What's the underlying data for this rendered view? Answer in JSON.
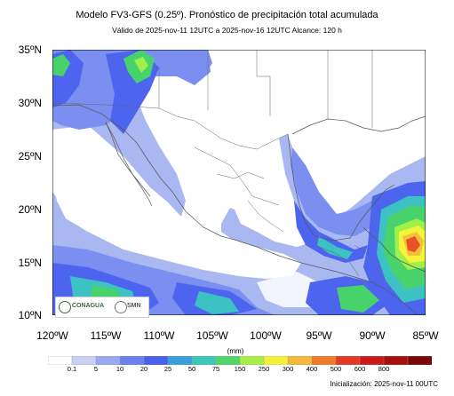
{
  "header": {
    "title": "Modelo FV3-GFS (0.25º). Pronóstico de precipitación total acumulada",
    "subtitle": "Válido de 2025-nov-11 12UTC a 2025-nov-16 12UTC    Alcance: 120 h"
  },
  "map": {
    "lon_range": [
      -120,
      -85
    ],
    "lat_range": [
      10,
      35
    ],
    "y_ticks": [
      "35ºN",
      "30ºN",
      "25ºN",
      "20ºN",
      "15ºN",
      "10ºN"
    ],
    "x_ticks": [
      "120ºW",
      "115ºW",
      "110ºW",
      "105ºW",
      "100ºW",
      "95ºW",
      "90ºW",
      "85ºW"
    ],
    "colors": {
      "land_white": "#ffffff",
      "c01": "#aab8f2",
      "c5": "#7b8ff0",
      "c10": "#4d64ee",
      "c20": "#3a8fd8",
      "c25": "#3dc2c4",
      "c50": "#48d26b",
      "c75": "#9ff04a",
      "c100": "#f6f43a",
      "c150": "#f4c23a",
      "c250": "#ec8a2c",
      "c300": "#e8522a",
      "c400": "#d8201c",
      "c600": "#a81010",
      "c700": "#7a0a0a"
    }
  },
  "colorbar": {
    "units": "(mm)",
    "labels": [
      "0.1",
      "5",
      "10",
      "20",
      "25",
      "50",
      "75",
      "150",
      "250",
      "300",
      "400",
      "500",
      "600",
      "800"
    ],
    "colors": [
      "#ffffff",
      "#c8d0f5",
      "#9aa8f2",
      "#6e80ef",
      "#4a5fee",
      "#3aa0d8",
      "#3cc8b8",
      "#52d66a",
      "#a6ee4a",
      "#f4f03a",
      "#f4b83a",
      "#ee7a2c",
      "#e33a26",
      "#cc1a1a",
      "#a81010",
      "#7a0808"
    ]
  },
  "footer": {
    "init": "Inicialización: 2025-nov-11 00UTC"
  },
  "logos": {
    "conagua": "CONAGUA",
    "smn": "SMN"
  }
}
